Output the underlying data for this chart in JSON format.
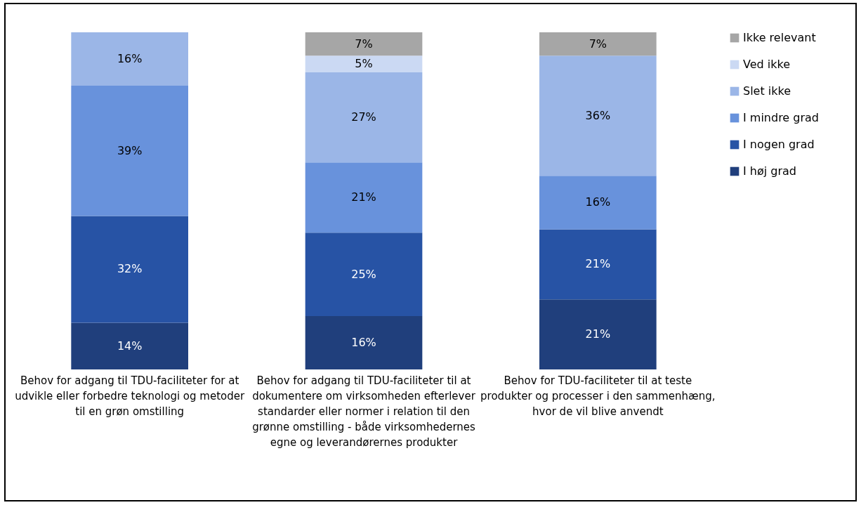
{
  "chart_data": {
    "type": "bar",
    "stacked": true,
    "legend": "right",
    "categories": [
      "Behov for adgang til TDU-faciliteter for at udvikle eller forbedre teknologi og metoder til en grøn omstilling",
      "Behov for adgang til TDU-faciliteter til at dokumentere om virksomheden efterlever standarder eller normer i relation til den grønne omstilling - både virksomhedernes egne og leverandørernes produkter",
      "Behov for TDU-faciliteter til at teste produkter og processer i den sammenhæng, hvor de vil blive anvendt"
    ],
    "series": [
      {
        "name": "I høj grad",
        "color": "#203f7c",
        "values": [
          14,
          16,
          21
        ],
        "value_labels": [
          "14%",
          "16%",
          "21%"
        ]
      },
      {
        "name": "I nogen grad",
        "color": "#2753a5",
        "values": [
          32,
          25,
          21
        ],
        "value_labels": [
          "32%",
          "25%",
          "21%"
        ]
      },
      {
        "name": "I mindre grad",
        "color": "#6892dc",
        "values": [
          39,
          21,
          16
        ],
        "value_labels": [
          "39%",
          "21%",
          "16%"
        ]
      },
      {
        "name": "Slet ikke",
        "color": "#9bb6e7",
        "values": [
          16,
          27,
          36
        ],
        "value_labels": [
          "16%",
          "27%",
          "36%"
        ]
      },
      {
        "name": "Ved ikke",
        "color": "#cbd9f3",
        "values": [
          null,
          5,
          null
        ],
        "value_labels": [
          null,
          "5%",
          null
        ]
      },
      {
        "name": "Ikke relevant",
        "color": "#a6a6a6",
        "values": [
          null,
          7,
          7
        ],
        "value_labels": [
          null,
          "7%",
          "7%"
        ]
      }
    ]
  }
}
